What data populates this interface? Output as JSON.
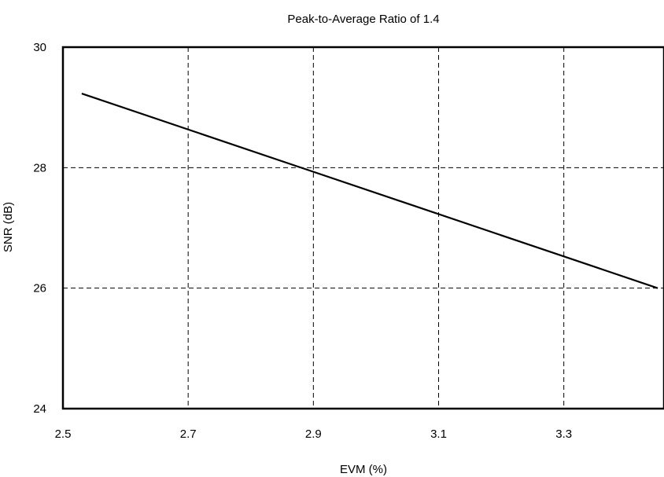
{
  "chart_data": {
    "type": "line",
    "title": "Peak-to-Average Ratio of 1.4",
    "xlabel": "EVM (%)",
    "ylabel": "SNR (dB)",
    "xlim": [
      2.5,
      3.46
    ],
    "ylim": [
      24,
      30
    ],
    "x_ticks": [
      "2.5",
      "2.7",
      "2.9",
      "3.1",
      "3.3"
    ],
    "y_ticks": [
      "24",
      "26",
      "28",
      "30"
    ],
    "grid": true,
    "series": [
      {
        "x": [
          2.53,
          3.45
        ],
        "y": [
          29.23,
          26.0
        ]
      }
    ]
  }
}
